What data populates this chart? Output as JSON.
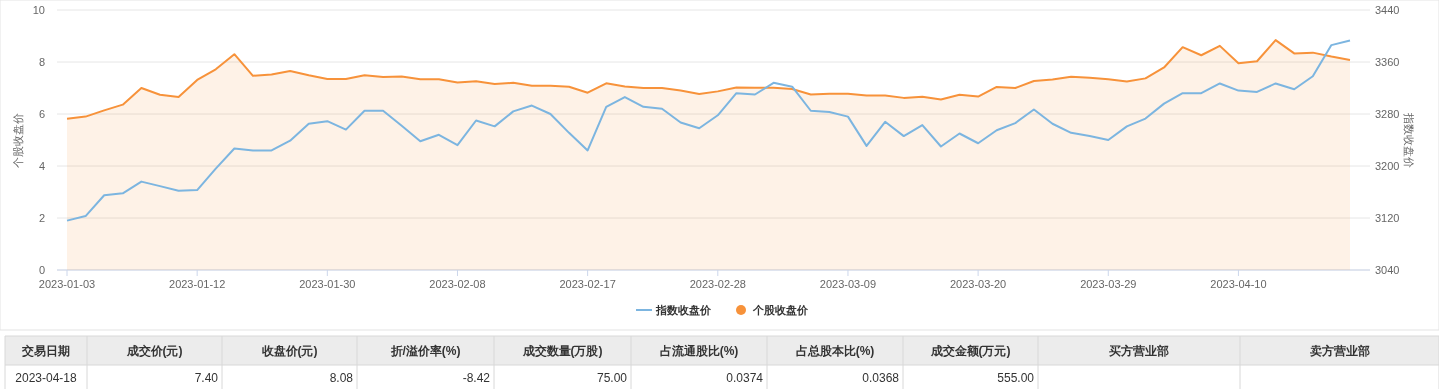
{
  "chart_data": {
    "type": "line",
    "categories": [
      "2023-01-03",
      null,
      null,
      null,
      null,
      null,
      null,
      "2023-01-12",
      null,
      null,
      null,
      null,
      null,
      null,
      "2023-01-30",
      null,
      null,
      null,
      null,
      null,
      null,
      "2023-02-08",
      null,
      null,
      null,
      null,
      null,
      null,
      "2023-02-17",
      null,
      null,
      null,
      null,
      null,
      null,
      "2023-02-28",
      null,
      null,
      null,
      null,
      null,
      null,
      "2023-03-09",
      null,
      null,
      null,
      null,
      null,
      null,
      "2023-03-20",
      null,
      null,
      null,
      null,
      null,
      null,
      "2023-03-29",
      null,
      null,
      null,
      null,
      null,
      null,
      "2023-04-10",
      null,
      null,
      null,
      null,
      null,
      null
    ],
    "ylabel": "个股收盘价",
    "y2label": "指数收盘价",
    "ylim": [
      0,
      10
    ],
    "yticks": [
      0,
      2,
      4,
      6,
      8,
      10
    ],
    "y2lim": [
      3040,
      3440
    ],
    "y2ticks": [
      3040,
      3120,
      3200,
      3280,
      3360,
      3440
    ],
    "grid": "y",
    "legend": "bottom",
    "series": [
      {
        "name": "指数收盘价",
        "axis": "y2",
        "color": "#7cb5e0",
        "values": [
          3116,
          3123,
          3155,
          3158,
          3176,
          3169,
          3162,
          3163,
          3196,
          3227,
          3224,
          3224,
          3239,
          3265,
          3269,
          3256,
          3285,
          3285,
          3262,
          3238,
          3248,
          3232,
          3270,
          3261,
          3284,
          3293,
          3280,
          3251,
          3224,
          3291,
          3306,
          3291,
          3288,
          3267,
          3258,
          3278,
          3312,
          3310,
          3328,
          3322,
          3285,
          3283,
          3276,
          3231,
          3268,
          3246,
          3263,
          3230,
          3250,
          3235,
          3255,
          3266,
          3287,
          3265,
          3251,
          3246,
          3240,
          3261,
          3273,
          3296,
          3312,
          3312,
          3327,
          3316,
          3314,
          3327,
          3318,
          3338,
          3386,
          3393
        ]
      },
      {
        "name": "个股收盘价",
        "type": "area",
        "color": "#f7923a",
        "values": [
          5.82,
          5.9,
          6.14,
          6.36,
          7.0,
          6.74,
          6.65,
          7.31,
          7.72,
          8.3,
          7.47,
          7.52,
          7.65,
          7.49,
          7.35,
          7.35,
          7.49,
          7.42,
          7.44,
          7.34,
          7.34,
          7.21,
          7.26,
          7.15,
          7.2,
          7.09,
          7.09,
          7.05,
          6.82,
          7.18,
          7.06,
          7.0,
          7.0,
          6.9,
          6.77,
          6.87,
          7.02,
          7.01,
          7.01,
          6.96,
          6.75,
          6.78,
          6.78,
          6.71,
          6.71,
          6.62,
          6.66,
          6.56,
          6.74,
          6.67,
          7.04,
          7.0,
          7.27,
          7.33,
          7.43,
          7.39,
          7.34,
          7.25,
          7.37,
          7.79,
          8.57,
          8.26,
          8.62,
          7.95,
          8.03,
          8.84,
          8.33,
          8.36,
          8.21,
          8.08
        ]
      }
    ],
    "annotations": [
      "交易日期",
      "成交价(元)",
      "收盘价(元)",
      "折/溢价率(%)",
      "成交数量(万股)",
      "占流通股比(%)",
      "占总股本比(%)",
      "成交金额(万元)",
      "买方营业部",
      "卖方营业部",
      "2023-04-18",
      "7.40",
      "8.08",
      "-8.42",
      "75.00",
      "0.0374",
      "0.0368",
      "555.00"
    ]
  }
}
